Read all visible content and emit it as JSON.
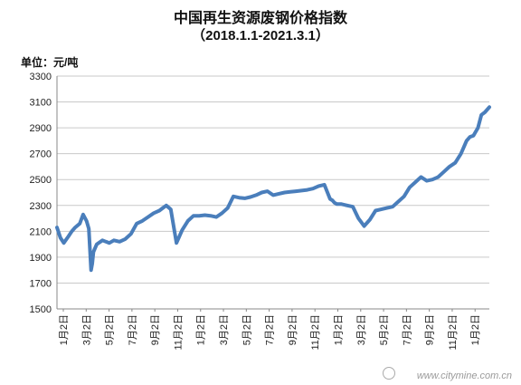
{
  "chart_data": {
    "type": "line",
    "title": "中国再生资源废钢价格指数",
    "subtitle": "（2018.1.1-2021.3.1）",
    "ylabel": "单位：元/吨",
    "xlabel": "",
    "ylim": [
      1500,
      3300
    ],
    "yticks": [
      1500,
      1700,
      1900,
      2100,
      2300,
      2500,
      2700,
      2900,
      3100,
      3300
    ],
    "xticks": [
      "1月2日",
      "3月2日",
      "5月2日",
      "7月2日",
      "9月2日",
      "11月2日",
      "1月2日",
      "3月2日",
      "5月2日",
      "7月2日",
      "9月2日",
      "11月2日",
      "1月2日",
      "3月2日",
      "5月2日",
      "7月2日",
      "9月2日",
      "11月2日",
      "1月2日"
    ],
    "xlim": [
      0,
      38
    ],
    "grid": "horizontal",
    "legend": "none",
    "line_color": "#4a7ebb",
    "series": [
      {
        "x": [
          0,
          0.3,
          0.6,
          1.0,
          1.3,
          1.6,
          2.0,
          2.3,
          2.6,
          2.8,
          3.0,
          3.1,
          3.2,
          3.3,
          3.5,
          4.0,
          4.3,
          4.6,
          5.0,
          5.5,
          6.0,
          6.5,
          7.0,
          7.5,
          8.0,
          8.5,
          9.0,
          9.3,
          9.6,
          10.0,
          10.5,
          11.0,
          11.5,
          12.0,
          12.5,
          13.0,
          13.5,
          14.0,
          14.5,
          15.0,
          15.5,
          16.0,
          16.5,
          17.0,
          17.5,
          18.0,
          18.5,
          19.0,
          19.5,
          20.0,
          20.5,
          21.0,
          21.5,
          22.0,
          22.5,
          23.0,
          23.5,
          24.0,
          24.2,
          24.4,
          24.6,
          25.0,
          25.5,
          26.0,
          26.5,
          27.0,
          27.5,
          28.0,
          28.5,
          29.0,
          29.5,
          30.0,
          30.5,
          31.0,
          31.5,
          32.0,
          32.5,
          33.0,
          33.5,
          34.0,
          34.5,
          35.0,
          35.5,
          36.0,
          36.3,
          36.6,
          37.0,
          37.3,
          37.6,
          38.0
        ],
        "y": [
          2130,
          2050,
          2010,
          2060,
          2100,
          2130,
          2160,
          2230,
          2180,
          2120,
          1800,
          1850,
          1940,
          1960,
          2000,
          2030,
          2020,
          2010,
          2030,
          2020,
          2040,
          2080,
          2160,
          2180,
          2210,
          2240,
          2260,
          2280,
          2300,
          2270,
          2010,
          2110,
          2180,
          2220,
          2220,
          2225,
          2220,
          2210,
          2240,
          2280,
          2370,
          2360,
          2355,
          2365,
          2380,
          2400,
          2410,
          2380,
          2390,
          2400,
          2405,
          2410,
          2415,
          2420,
          2430,
          2450,
          2460,
          2350,
          2340,
          2320,
          2310,
          2310,
          2300,
          2290,
          2200,
          2140,
          2190,
          2260,
          2270,
          2280,
          2290,
          2330,
          2370,
          2440,
          2480,
          2520,
          2490,
          2500,
          2520,
          2560,
          2600,
          2630,
          2700,
          2800,
          2830,
          2840,
          2900,
          3000,
          3020,
          3060
        ]
      }
    ],
    "watermark": "www.citymine.com.cn"
  }
}
